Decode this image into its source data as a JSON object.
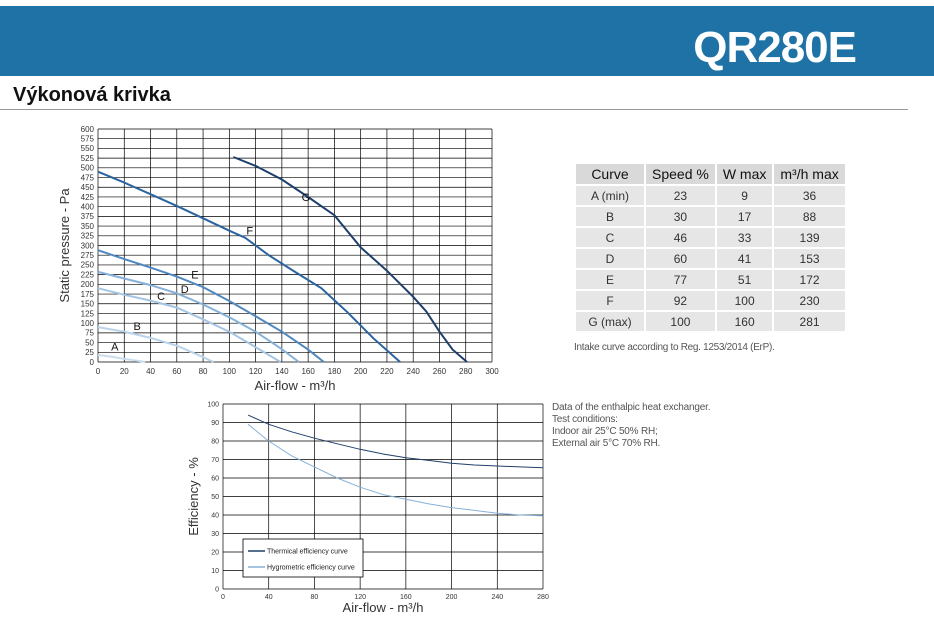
{
  "header": {
    "model": "QR280E",
    "background_color": "#1e72a6"
  },
  "section": {
    "title": "Výkonová krivka"
  },
  "table": {
    "headers": [
      "Curve",
      "Speed  %",
      "W max",
      "m³/h max"
    ],
    "rows": [
      [
        "A (min)",
        "23",
        "9",
        "36"
      ],
      [
        "B",
        "30",
        "17",
        "88"
      ],
      [
        "C",
        "46",
        "33",
        "139"
      ],
      [
        "D",
        "60",
        "41",
        "153"
      ],
      [
        "E",
        "77",
        "51",
        "172"
      ],
      [
        "F",
        "92",
        "100",
        "230"
      ],
      [
        "G (max)",
        "100",
        "160",
        "281"
      ]
    ]
  },
  "notes": {
    "intake": "Intake curve according to Reg. 1253/2014 (ErP).",
    "test_lines": [
      "Data of the enthalpic heat exchanger.",
      "Test conditions:",
      "Indoor air 25°C 50% RH;",
      "External air 5°C 70% RH."
    ]
  },
  "chart_data": [
    {
      "type": "line",
      "xlabel": "Air-flow - m³/h",
      "ylabel": "Static pressure - Pa",
      "xlim": [
        0,
        300
      ],
      "ylim": [
        0,
        600
      ],
      "xticks": [
        0,
        20,
        40,
        60,
        80,
        100,
        120,
        140,
        160,
        180,
        200,
        220,
        240,
        260,
        280,
        300
      ],
      "yticks": [
        0,
        25,
        50,
        75,
        100,
        125,
        150,
        175,
        200,
        225,
        250,
        275,
        300,
        325,
        350,
        375,
        400,
        425,
        450,
        475,
        500,
        525,
        550,
        575,
        600
      ],
      "grid": true,
      "series": [
        {
          "name": "A",
          "color": "#c9ddee",
          "label_at": [
            10,
            30
          ],
          "points": [
            [
              0,
              18
            ],
            [
              10,
              14
            ],
            [
              20,
              8
            ],
            [
              30,
              3
            ],
            [
              36,
              0
            ]
          ]
        },
        {
          "name": "B",
          "color": "#b9d3ea",
          "label_at": [
            27,
            83
          ],
          "points": [
            [
              0,
              90
            ],
            [
              20,
              78
            ],
            [
              40,
              62
            ],
            [
              60,
              42
            ],
            [
              75,
              20
            ],
            [
              88,
              0
            ]
          ]
        },
        {
          "name": "C",
          "color": "#a4c5e3",
          "label_at": [
            45,
            160
          ],
          "points": [
            [
              0,
              190
            ],
            [
              20,
              173
            ],
            [
              40,
              158
            ],
            [
              60,
              140
            ],
            [
              80,
              110
            ],
            [
              100,
              78
            ],
            [
              120,
              38
            ],
            [
              139,
              0
            ]
          ]
        },
        {
          "name": "D",
          "color": "#86b1d8",
          "label_at": [
            63,
            178
          ],
          "points": [
            [
              0,
              232
            ],
            [
              20,
              215
            ],
            [
              40,
              198
            ],
            [
              60,
              177
            ],
            [
              80,
              148
            ],
            [
              100,
              115
            ],
            [
              120,
              78
            ],
            [
              140,
              33
            ],
            [
              153,
              0
            ]
          ]
        },
        {
          "name": "E",
          "color": "#4e88bf",
          "label_at": [
            71,
            215
          ],
          "points": [
            [
              0,
              288
            ],
            [
              20,
              265
            ],
            [
              40,
              243
            ],
            [
              60,
              220
            ],
            [
              80,
              193
            ],
            [
              100,
              157
            ],
            [
              120,
              118
            ],
            [
              140,
              78
            ],
            [
              160,
              32
            ],
            [
              172,
              0
            ]
          ]
        },
        {
          "name": "F",
          "color": "#2a64a0",
          "label_at": [
            113,
            328
          ],
          "points": [
            [
              0,
              490
            ],
            [
              20,
              462
            ],
            [
              40,
              432
            ],
            [
              60,
              402
            ],
            [
              80,
              370
            ],
            [
              100,
              338
            ],
            [
              112,
              320
            ],
            [
              130,
              275
            ],
            [
              150,
              232
            ],
            [
              170,
              190
            ],
            [
              190,
              128
            ],
            [
              210,
              60
            ],
            [
              230,
              0
            ]
          ]
        },
        {
          "name": "G",
          "color": "#1f3f6b",
          "label_at": [
            155,
            415
          ],
          "points": [
            [
              103,
              528
            ],
            [
              120,
              505
            ],
            [
              140,
              470
            ],
            [
              160,
              425
            ],
            [
              180,
              378
            ],
            [
              200,
              295
            ],
            [
              220,
              235
            ],
            [
              240,
              168
            ],
            [
              250,
              130
            ],
            [
              260,
              78
            ],
            [
              270,
              32
            ],
            [
              281,
              0
            ]
          ]
        }
      ]
    },
    {
      "type": "line",
      "xlabel": "Air-flow - m³/h",
      "ylabel": "Efficiency - %",
      "xlim": [
        0,
        280
      ],
      "ylim": [
        0,
        100
      ],
      "xticks": [
        0,
        40,
        80,
        120,
        160,
        200,
        240,
        280
      ],
      "yticks": [
        0,
        10,
        20,
        30,
        40,
        50,
        60,
        70,
        80,
        90,
        100
      ],
      "grid": true,
      "legend_position": "bottom-left",
      "series": [
        {
          "name": "Thermical efficiency curve",
          "color": "#1f3f6b",
          "points": [
            [
              22,
              94
            ],
            [
              40,
              89
            ],
            [
              60,
              85
            ],
            [
              80,
              81.5
            ],
            [
              100,
              78.5
            ],
            [
              120,
              75.5
            ],
            [
              140,
              73
            ],
            [
              160,
              71
            ],
            [
              180,
              69.5
            ],
            [
              200,
              68
            ],
            [
              220,
              67
            ],
            [
              240,
              66.5
            ],
            [
              260,
              66
            ],
            [
              280,
              65.5
            ]
          ]
        },
        {
          "name": "Hygrometric efficiency curve",
          "color": "#86b1d8",
          "points": [
            [
              22,
              89
            ],
            [
              40,
              80
            ],
            [
              60,
              72
            ],
            [
              80,
              66
            ],
            [
              100,
              60
            ],
            [
              120,
              55
            ],
            [
              140,
              51
            ],
            [
              160,
              48.5
            ],
            [
              180,
              46
            ],
            [
              200,
              44
            ],
            [
              220,
              42.5
            ],
            [
              240,
              41
            ],
            [
              260,
              40
            ],
            [
              280,
              39.5
            ]
          ]
        }
      ]
    }
  ]
}
